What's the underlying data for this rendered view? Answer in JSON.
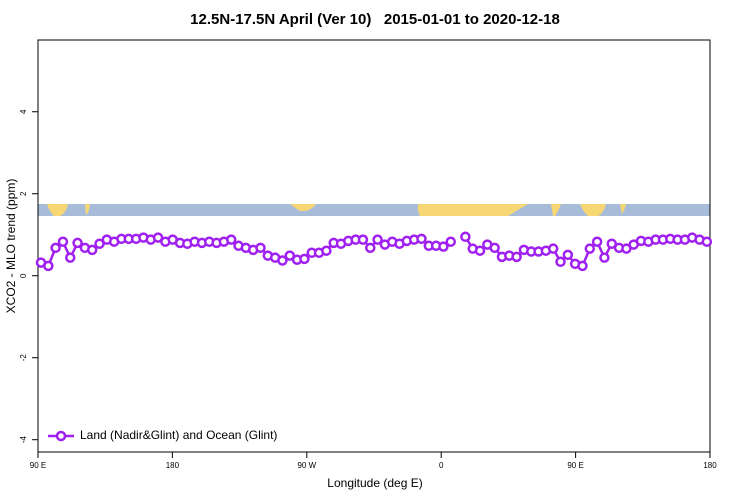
{
  "chart_data": {
    "type": "line",
    "title": "12.5N-17.5N April (Ver 10)   2015-01-01 to 2020-12-18",
    "xlabel": "Longitude (deg E)",
    "ylabel": "XCO2 - MLO trend (ppm)",
    "xlim": [
      90,
      540
    ],
    "xticks": [
      {
        "value": 90,
        "label": "90 E"
      },
      180,
      {
        "value": 270,
        "label": "90 W"
      },
      {
        "value": 360,
        "label": "0"
      },
      {
        "value": 450,
        "label": "90 E"
      },
      {
        "value": 540,
        "label": "180"
      }
    ],
    "ylim": [
      -4.3,
      5.75
    ],
    "yticks": [
      -4,
      -2,
      0,
      2,
      4
    ],
    "legend": "bottom-left",
    "x": [
      92,
      96.9,
      101.8,
      106.7,
      111.6,
      116.5,
      121.4,
      126.3,
      131.2,
      136.1,
      141,
      145.9,
      150.8,
      155.7,
      160.6,
      165.5,
      170.4,
      175.3,
      180.2,
      185.1,
      190,
      194.9,
      199.8,
      204.7,
      209.6,
      214.5,
      219.4,
      224.3,
      229.2,
      234.1,
      239,
      243.9,
      248.8,
      253.7,
      258.6,
      263.5,
      268.4,
      273.3,
      278.2,
      283.1,
      288,
      292.9,
      297.8,
      302.7,
      307.6,
      312.5,
      317.4,
      322.3,
      327.2,
      332.1,
      337,
      341.9,
      346.8,
      351.7,
      356.6,
      361.5,
      366.4,
      371.3,
      376.2,
      381.1,
      386,
      390.9,
      395.8,
      400.7,
      405.6,
      410.5,
      415.4,
      420.3,
      425.2,
      430.1,
      435,
      439.9,
      444.8,
      449.7,
      454.6,
      459.5,
      464.4,
      469.3,
      474.2,
      479.1,
      484,
      488.9,
      493.8,
      498.7,
      503.6,
      508.5,
      513.4,
      518.3,
      523.2,
      528.1,
      533,
      537.9
    ],
    "series": [
      {
        "name": "Land (Nadir&Glint) and Ocean (Glint)",
        "color": "#a020f0",
        "values": [
          0.32,
          0.24,
          0.68,
          0.83,
          0.44,
          0.8,
          0.68,
          0.63,
          0.78,
          0.88,
          0.83,
          0.9,
          0.9,
          0.9,
          0.93,
          0.88,
          0.93,
          0.83,
          0.88,
          0.8,
          0.78,
          0.83,
          0.8,
          0.83,
          0.8,
          0.83,
          0.88,
          0.73,
          0.68,
          0.63,
          0.68,
          0.49,
          0.44,
          0.37,
          0.49,
          0.39,
          0.41,
          0.56,
          0.56,
          0.61,
          0.8,
          0.78,
          0.85,
          0.88,
          0.88,
          0.68,
          0.88,
          0.76,
          0.83,
          0.78,
          0.85,
          0.88,
          0.9,
          0.73,
          0.73,
          0.71,
          0.83,
          null,
          0.95,
          0.66,
          0.61,
          0.76,
          0.68,
          0.46,
          0.49,
          0.46,
          0.63,
          0.59,
          0.59,
          0.61,
          0.66,
          0.34,
          0.51,
          0.29,
          0.24,
          0.66,
          0.83,
          0.44,
          0.78,
          0.68,
          0.66,
          0.76,
          0.85,
          0.83,
          0.88,
          0.88,
          0.9,
          0.88,
          0.88,
          0.93,
          0.88,
          0.83
        ]
      }
    ]
  }
}
